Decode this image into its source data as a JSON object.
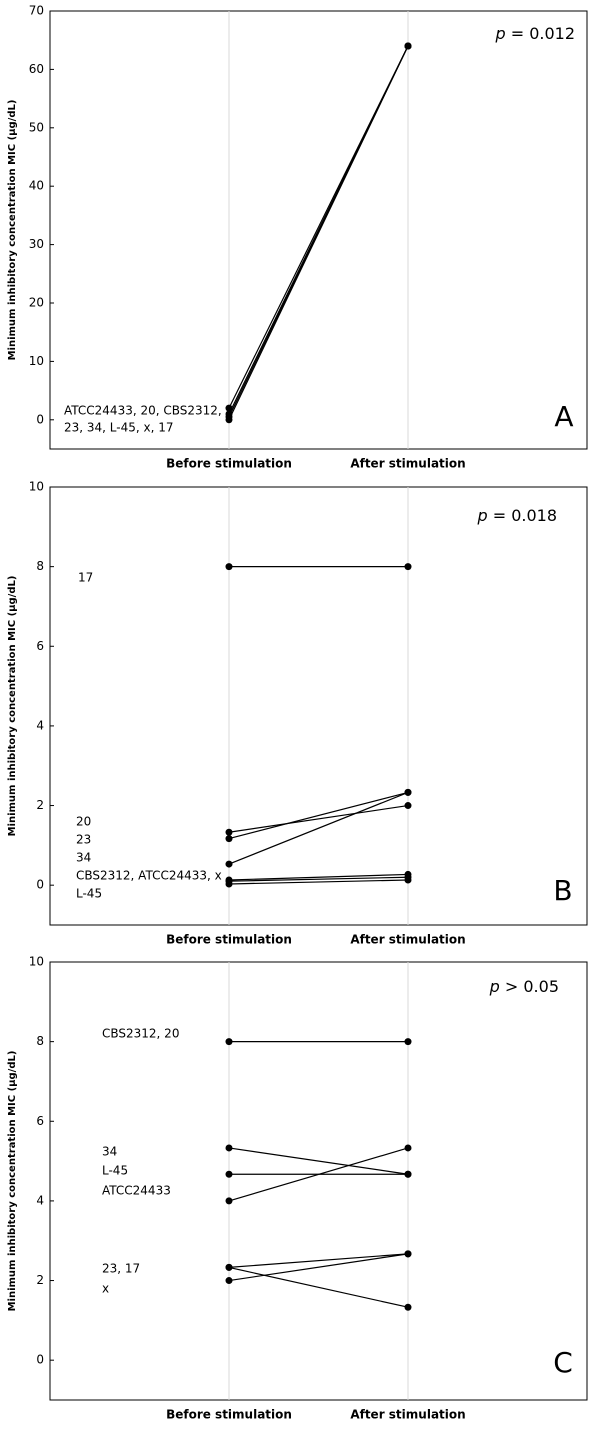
{
  "chart_data": [
    {
      "type": "line",
      "categories": [
        "Before stimulation",
        "After stimulation"
      ],
      "ylabel": "Minimum inhibitory concentration  MIC (µg/dL)",
      "ylim": [
        -5,
        70
      ],
      "yticks": [
        0,
        10,
        20,
        30,
        40,
        50,
        60,
        70
      ],
      "grid": "x",
      "series": [
        {
          "color": "#000000",
          "values": [
            2,
            64
          ]
        },
        {
          "color": "#000000",
          "values": [
            1,
            64
          ]
        },
        {
          "color": "#000000",
          "values": [
            0.5,
            64
          ]
        },
        {
          "color": "#000000",
          "values": [
            0,
            64
          ]
        }
      ],
      "annotations": [
        "ATCC24433, 20, CBS2312,",
        "23, 34, L-45, x, 17"
      ],
      "panel_label": "A",
      "p_symbol": "p",
      "p_text": " = 0.012"
    },
    {
      "type": "line",
      "categories": [
        "Before stimulation",
        "After stimulation"
      ],
      "ylabel": "Minimum inhibitory concentration  MIC (µg/dL)",
      "ylim": [
        -1,
        10
      ],
      "yticks": [
        0,
        2,
        4,
        6,
        8,
        10
      ],
      "grid": "x",
      "series": [
        {
          "color": "#000000",
          "values": [
            8,
            8
          ]
        },
        {
          "color": "#000000",
          "values": [
            1.33,
            2
          ]
        },
        {
          "color": "#000000",
          "values": [
            1.17,
            2.33
          ]
        },
        {
          "color": "#000000",
          "values": [
            0.53,
            2.33
          ]
        },
        {
          "color": "#000000",
          "values": [
            0.13,
            0.27
          ]
        },
        {
          "color": "#000000",
          "values": [
            0.1,
            0.2
          ]
        },
        {
          "color": "#000000",
          "values": [
            0.03,
            0.13
          ]
        }
      ],
      "annotations": [
        "17",
        "20",
        "23",
        "34",
        "CBS2312, ATCC24433, x",
        "L-45"
      ],
      "panel_label": "B",
      "p_symbol": "p",
      "p_text": " = 0.018"
    },
    {
      "type": "line",
      "categories": [
        "Before stimulation",
        "After stimulation"
      ],
      "ylabel": "Minimum inhibitory concentration  MIC (µg/dL)",
      "ylim": [
        -1,
        10
      ],
      "yticks": [
        0,
        2,
        4,
        6,
        8,
        10
      ],
      "grid": "x",
      "series": [
        {
          "color": "#000000",
          "values": [
            8,
            8
          ]
        },
        {
          "color": "#000000",
          "values": [
            5.33,
            4.67
          ]
        },
        {
          "color": "#000000",
          "values": [
            4.67,
            4.67
          ]
        },
        {
          "color": "#000000",
          "values": [
            4,
            5.33
          ]
        },
        {
          "color": "#000000",
          "values": [
            2.33,
            2.67
          ]
        },
        {
          "color": "#000000",
          "values": [
            2.33,
            1.33
          ]
        },
        {
          "color": "#000000",
          "values": [
            2,
            2.67
          ]
        }
      ],
      "annotations": [
        "CBS2312, 20",
        "34",
        "L-45",
        "ATCC24433",
        "23, 17",
        "x"
      ],
      "panel_label": "C",
      "p_symbol": "p",
      "p_text": " > 0.05"
    }
  ]
}
